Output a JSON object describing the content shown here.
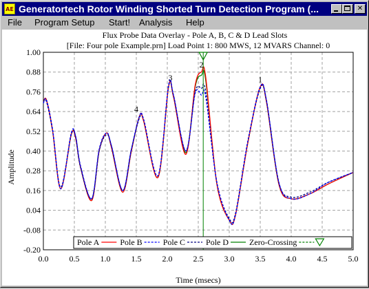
{
  "window": {
    "title": "Generatortech Rotor Winding Shorted Turn Detection Program (...",
    "icon_name": "app-icon",
    "icon_text": "AE",
    "controls": [
      "minimize-button",
      "maximize-button",
      "close-button"
    ]
  },
  "menu": [
    {
      "label": "File"
    },
    {
      "label": "Program Setup"
    },
    {
      "label": "Start!"
    },
    {
      "label": "Analysis"
    },
    {
      "label": "Help"
    }
  ],
  "chart_data": {
    "type": "line",
    "title": "Flux Probe Data Overlay - Pole A, B, C & D Lead Slots",
    "subtitle": "[File: Four pole Example.prn]  Load Point 1: 800 MWS, 12 MVARS    Channel: 0",
    "xlabel": "Time (msecs)",
    "ylabel": "Amplitude",
    "xlim": [
      0.0,
      5.0
    ],
    "ylim": [
      -0.2,
      1.0
    ],
    "xticks": [
      "0.0",
      "0.5",
      "1.0",
      "1.5",
      "2.0",
      "2.5",
      "3.0",
      "3.5",
      "4.0",
      "4.5",
      "5.0"
    ],
    "yticks": [
      "1.00",
      "0.88",
      "0.76",
      "0.64",
      "0.52",
      "0.40",
      "0.28",
      "0.16",
      "0.04",
      "-0.08",
      "-0.20"
    ],
    "grid": true,
    "legend_position": "bottom",
    "x": [
      0.0,
      0.05,
      0.15,
      0.28,
      0.45,
      0.52,
      0.6,
      0.78,
      0.9,
      1.02,
      1.1,
      1.28,
      1.42,
      1.55,
      1.62,
      1.85,
      2.02,
      2.1,
      2.3,
      2.45,
      2.55,
      2.62,
      2.8,
      3.0,
      3.1,
      3.3,
      3.5,
      3.6,
      3.8,
      4.0,
      4.3,
      4.6,
      5.0
    ],
    "series": [
      {
        "name": "Pole A",
        "color": "#ff0000",
        "style": "solid",
        "values": [
          0.7,
          0.71,
          0.52,
          0.17,
          0.5,
          0.48,
          0.3,
          0.1,
          0.4,
          0.51,
          0.42,
          0.15,
          0.4,
          0.61,
          0.58,
          0.24,
          0.79,
          0.73,
          0.38,
          0.8,
          0.88,
          0.85,
          0.2,
          -0.02,
          0.01,
          0.45,
          0.79,
          0.7,
          0.2,
          0.11,
          0.14,
          0.2,
          0.27
        ]
      },
      {
        "name": "Pole B",
        "color": "#0000ff",
        "style": "dashed",
        "values": [
          0.69,
          0.71,
          0.53,
          0.17,
          0.51,
          0.49,
          0.31,
          0.11,
          0.41,
          0.51,
          0.43,
          0.16,
          0.41,
          0.61,
          0.59,
          0.25,
          0.8,
          0.74,
          0.4,
          0.75,
          0.74,
          0.73,
          0.21,
          -0.02,
          0.01,
          0.46,
          0.79,
          0.71,
          0.21,
          0.11,
          0.14,
          0.21,
          0.27
        ]
      },
      {
        "name": "Pole C",
        "color": "#000080",
        "style": "dashed",
        "values": [
          0.7,
          0.7,
          0.52,
          0.18,
          0.5,
          0.49,
          0.3,
          0.11,
          0.4,
          0.5,
          0.43,
          0.16,
          0.41,
          0.6,
          0.59,
          0.25,
          0.79,
          0.74,
          0.4,
          0.76,
          0.78,
          0.76,
          0.21,
          -0.01,
          0.02,
          0.46,
          0.78,
          0.71,
          0.21,
          0.12,
          0.15,
          0.21,
          0.27
        ]
      },
      {
        "name": "Pole D",
        "color": "#008000",
        "style": "solid",
        "values": [
          0.7,
          0.71,
          0.52,
          0.17,
          0.5,
          0.48,
          0.3,
          0.1,
          0.4,
          0.51,
          0.42,
          0.15,
          0.4,
          0.61,
          0.58,
          0.24,
          0.79,
          0.73,
          0.39,
          0.79,
          0.86,
          0.83,
          0.2,
          -0.02,
          0.01,
          0.45,
          0.79,
          0.7,
          0.2,
          0.11,
          0.14,
          0.2,
          0.27
        ]
      }
    ],
    "zero_crossing": {
      "name": "Zero-Crossing",
      "color": "#008000",
      "x": 2.58
    },
    "pole_labels": [
      {
        "text": "1",
        "x": 3.5,
        "y": 0.81
      },
      {
        "text": "2",
        "x": 2.55,
        "y": 0.9
      },
      {
        "text": "3",
        "x": 2.05,
        "y": 0.82
      },
      {
        "text": "4",
        "x": 1.5,
        "y": 0.63
      }
    ]
  }
}
